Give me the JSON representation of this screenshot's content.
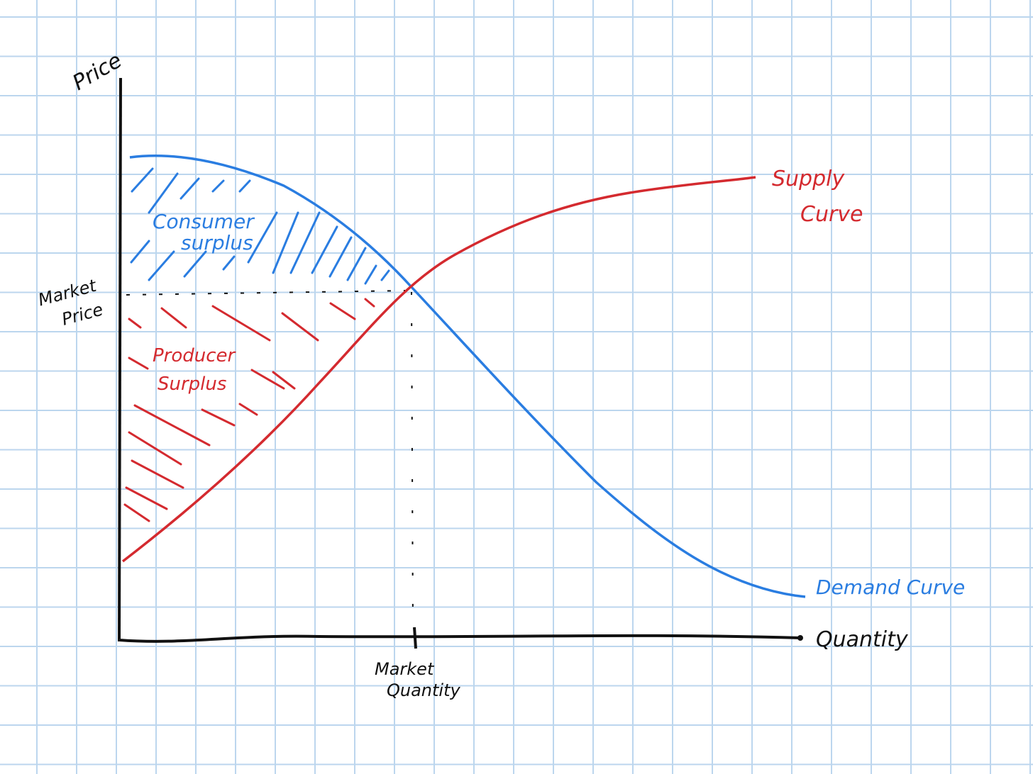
{
  "axes": {
    "y_label": "Price",
    "x_label": "Quantity"
  },
  "markers": {
    "market_price": [
      "Market",
      "Price"
    ],
    "market_quantity": [
      "Market",
      "Quantity"
    ]
  },
  "areas": {
    "consumer_surplus": [
      "Consumer",
      "surplus"
    ],
    "producer_surplus": [
      "Producer",
      "Surplus"
    ]
  },
  "curves": {
    "supply": [
      "Supply",
      "Curve"
    ],
    "demand": "Demand Curve"
  }
}
